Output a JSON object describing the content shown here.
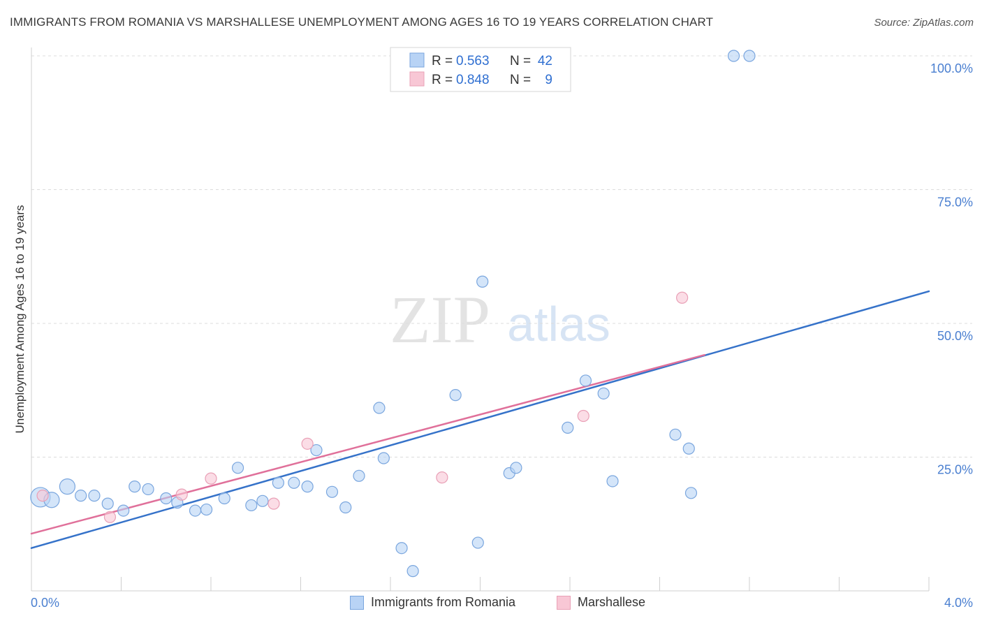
{
  "header": {
    "title": "IMMIGRANTS FROM ROMANIA VS MARSHALLESE UNEMPLOYMENT AMONG AGES 16 TO 19 YEARS CORRELATION CHART",
    "source": "Source: ZipAtlas.com"
  },
  "watermark": {
    "zip": "ZIP",
    "atlas": "atlas"
  },
  "chart_data": {
    "type": "scatter",
    "title": "IMMIGRANTS FROM ROMANIA VS MARSHALLESE UNEMPLOYMENT AMONG AGES 16 TO 19 YEARS CORRELATION CHART",
    "xlabel": "",
    "ylabel": "Unemployment Among Ages 16 to 19 years",
    "xlim": [
      0,
      4.0
    ],
    "ylim": [
      0,
      100
    ],
    "x_tick_labels": [
      "0.0%",
      "4.0%"
    ],
    "y_ticks": [
      25,
      50,
      75,
      100
    ],
    "y_tick_labels": [
      "25.0%",
      "50.0%",
      "75.0%",
      "100.0%"
    ],
    "grid": true,
    "colors": {
      "romania_fill": "#b8d3f5",
      "romania_stroke": "#7aa6de",
      "romania_line": "#3572c9",
      "marsh_fill": "#f8c7d5",
      "marsh_stroke": "#e9a0b6",
      "marsh_line": "#e0709a",
      "axis_label": "#4a7fd0",
      "value": "#2f6fd1"
    },
    "legend_stats": [
      {
        "r_label": "R =",
        "r_value": "0.563",
        "n_label": "N =",
        "n_value": "42"
      },
      {
        "r_label": "R =",
        "r_value": "0.848",
        "n_label": "N =",
        "n_value": "9"
      }
    ],
    "series": [
      {
        "name": "Immigrants from Romania",
        "trend": {
          "x": [
            0,
            4.0
          ],
          "y": [
            8.0,
            56.0
          ]
        },
        "points": [
          {
            "x": 0.04,
            "y": 17.5,
            "s": 3
          },
          {
            "x": 0.09,
            "y": 17.0,
            "s": 2
          },
          {
            "x": 0.16,
            "y": 19.5,
            "s": 2
          },
          {
            "x": 0.22,
            "y": 17.8,
            "s": 1
          },
          {
            "x": 0.28,
            "y": 17.8,
            "s": 1
          },
          {
            "x": 0.34,
            "y": 16.3,
            "s": 1
          },
          {
            "x": 0.41,
            "y": 15.0,
            "s": 1
          },
          {
            "x": 0.46,
            "y": 19.5,
            "s": 1
          },
          {
            "x": 0.52,
            "y": 19.0,
            "s": 1
          },
          {
            "x": 0.6,
            "y": 17.3,
            "s": 1
          },
          {
            "x": 0.65,
            "y": 16.5,
            "s": 1
          },
          {
            "x": 0.73,
            "y": 15.0,
            "s": 1
          },
          {
            "x": 0.78,
            "y": 15.2,
            "s": 1
          },
          {
            "x": 0.86,
            "y": 17.3,
            "s": 1
          },
          {
            "x": 0.92,
            "y": 23.0,
            "s": 1
          },
          {
            "x": 0.98,
            "y": 16.0,
            "s": 1
          },
          {
            "x": 1.03,
            "y": 16.8,
            "s": 1
          },
          {
            "x": 1.1,
            "y": 20.2,
            "s": 1
          },
          {
            "x": 1.17,
            "y": 20.2,
            "s": 1
          },
          {
            "x": 1.23,
            "y": 19.5,
            "s": 1
          },
          {
            "x": 1.27,
            "y": 26.3,
            "s": 1
          },
          {
            "x": 1.34,
            "y": 18.5,
            "s": 1
          },
          {
            "x": 1.4,
            "y": 15.6,
            "s": 1
          },
          {
            "x": 1.46,
            "y": 21.5,
            "s": 1
          },
          {
            "x": 1.55,
            "y": 34.2,
            "s": 1
          },
          {
            "x": 1.57,
            "y": 24.8,
            "s": 1
          },
          {
            "x": 1.65,
            "y": 8.0,
            "s": 1
          },
          {
            "x": 1.7,
            "y": 3.7,
            "s": 1
          },
          {
            "x": 1.89,
            "y": 36.6,
            "s": 1
          },
          {
            "x": 1.99,
            "y": 9.0,
            "s": 1
          },
          {
            "x": 2.01,
            "y": 57.8,
            "s": 1
          },
          {
            "x": 2.13,
            "y": 22.0,
            "s": 1
          },
          {
            "x": 2.16,
            "y": 23.0,
            "s": 1
          },
          {
            "x": 2.39,
            "y": 30.5,
            "s": 1
          },
          {
            "x": 2.47,
            "y": 39.3,
            "s": 1
          },
          {
            "x": 2.55,
            "y": 36.9,
            "s": 1
          },
          {
            "x": 2.59,
            "y": 20.5,
            "s": 1
          },
          {
            "x": 2.87,
            "y": 29.2,
            "s": 1
          },
          {
            "x": 2.93,
            "y": 26.6,
            "s": 1
          },
          {
            "x": 2.94,
            "y": 18.3,
            "s": 1
          },
          {
            "x": 3.13,
            "y": 100.0,
            "s": 1
          },
          {
            "x": 3.2,
            "y": 100.0,
            "s": 1
          }
        ]
      },
      {
        "name": "Marshallese",
        "trend": {
          "x": [
            0,
            3.0
          ],
          "y": [
            10.7,
            44.1
          ]
        },
        "points": [
          {
            "x": 0.05,
            "y": 17.8,
            "s": 1
          },
          {
            "x": 0.35,
            "y": 13.8,
            "s": 1
          },
          {
            "x": 0.67,
            "y": 18.0,
            "s": 1
          },
          {
            "x": 0.8,
            "y": 21.0,
            "s": 1
          },
          {
            "x": 1.08,
            "y": 16.3,
            "s": 1
          },
          {
            "x": 1.23,
            "y": 27.5,
            "s": 1
          },
          {
            "x": 1.83,
            "y": 21.2,
            "s": 1
          },
          {
            "x": 2.46,
            "y": 32.7,
            "s": 1
          },
          {
            "x": 2.9,
            "y": 54.8,
            "s": 1
          }
        ]
      }
    ]
  }
}
